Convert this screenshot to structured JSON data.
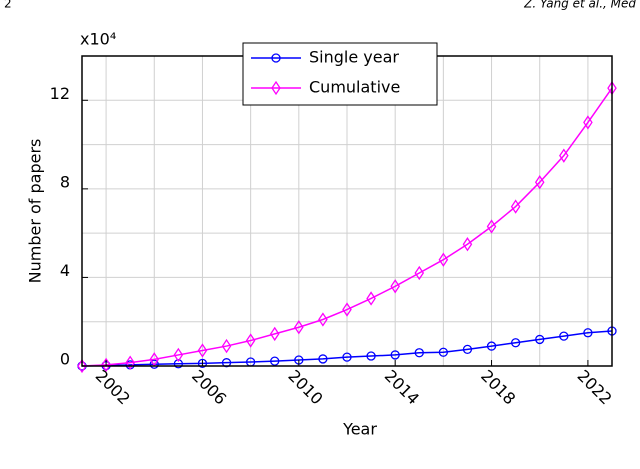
{
  "page_header": {
    "page_number": "2",
    "running_title": "Z. Yang et al., Med"
  },
  "chart_data": {
    "type": "line",
    "y_multiplier": "x10⁴",
    "xlabel": "Year",
    "ylabel": "Number of papers",
    "x": [
      2001,
      2002,
      2003,
      2004,
      2005,
      2006,
      2007,
      2008,
      2009,
      2010,
      2011,
      2012,
      2013,
      2014,
      2015,
      2016,
      2017,
      2018,
      2019,
      2020,
      2021,
      2022,
      2023
    ],
    "series": [
      {
        "name": "Single year",
        "color": "#0000ff",
        "marker": "circle",
        "values": [
          0,
          0.02,
          0.05,
          0.08,
          0.1,
          0.12,
          0.15,
          0.18,
          0.22,
          0.27,
          0.32,
          0.4,
          0.45,
          0.5,
          0.6,
          0.62,
          0.75,
          0.9,
          1.05,
          1.2,
          1.35,
          1.5,
          1.58
        ]
      },
      {
        "name": "Cumulative",
        "color": "#ff00ff",
        "marker": "diamond",
        "values": [
          0,
          0.05,
          0.15,
          0.3,
          0.5,
          0.7,
          0.9,
          1.15,
          1.45,
          1.75,
          2.1,
          2.55,
          3.05,
          3.6,
          4.2,
          4.8,
          5.5,
          6.3,
          7.2,
          8.3,
          9.5,
          11.0,
          12.55
        ]
      }
    ],
    "xlim": [
      2001,
      2023
    ],
    "xticks": [
      2002,
      2006,
      2010,
      2014,
      2018,
      2022
    ],
    "x_minor_grid": [
      2004,
      2008,
      2012,
      2016,
      2020
    ],
    "ylim": [
      0,
      14
    ],
    "yticks": [
      0,
      4,
      8,
      12
    ],
    "y_minor_grid": [
      2,
      6,
      10,
      14
    ],
    "grid": true,
    "legend": "top-center"
  }
}
